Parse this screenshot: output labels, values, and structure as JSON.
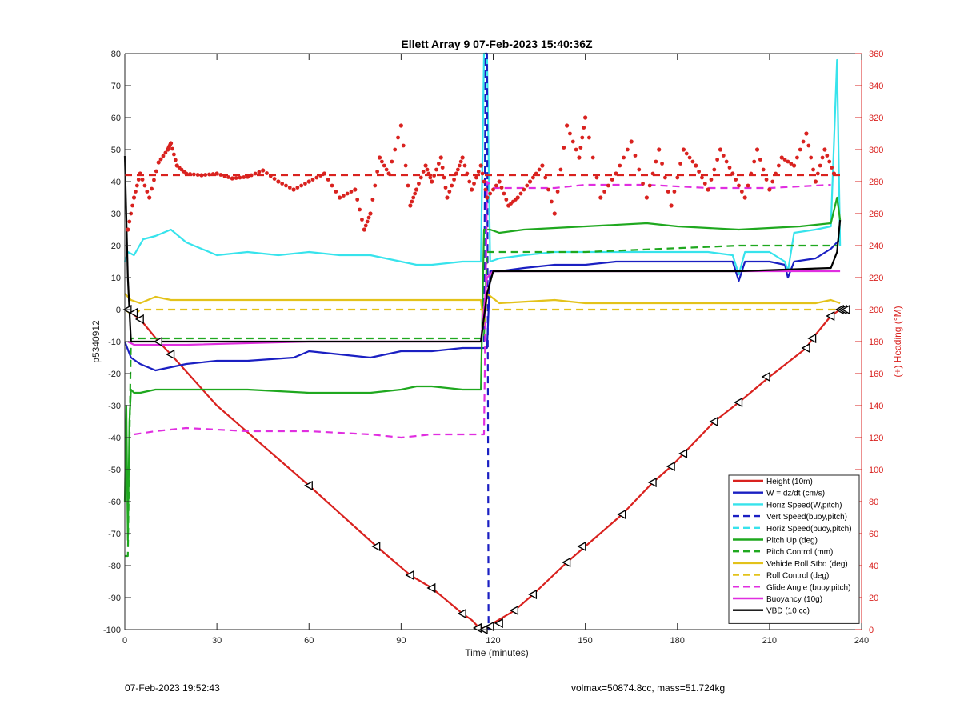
{
  "chart_data": {
    "type": "line",
    "title": "Ellett Array 9 07-Feb-2023 15:40:36Z",
    "xlabel": "Time (minutes)",
    "ylabel": "p5340912",
    "y2label": "(+) Heading (°M)",
    "xlim": [
      0,
      240
    ],
    "ylim": [
      -100,
      80
    ],
    "y2lim": [
      0,
      360
    ],
    "xticks": [
      0,
      30,
      60,
      90,
      120,
      150,
      180,
      210,
      240
    ],
    "yticks": [
      -100,
      -90,
      -80,
      -70,
      -60,
      -50,
      -40,
      -30,
      -20,
      -10,
      0,
      10,
      20,
      30,
      40,
      50,
      60,
      70,
      80
    ],
    "y2ticks": [
      0,
      20,
      40,
      60,
      80,
      100,
      120,
      140,
      160,
      180,
      200,
      220,
      240,
      260,
      280,
      300,
      320,
      340,
      360
    ],
    "legend_position": "bottom-right",
    "colors": {
      "red": "#d9221f",
      "blue": "#1a1fc2",
      "cyan": "#37e3ec",
      "green": "#1fa81f",
      "yellow": "#e3c21a",
      "magenta": "#e02ee0",
      "black": "#000000"
    },
    "series": [
      {
        "name": "Height (10m)",
        "color": "#d9221f",
        "style": "solid",
        "marker": "triangle",
        "x": [
          0,
          2,
          5,
          11,
          15,
          30,
          60,
          82,
          93,
          100,
          110,
          113,
          115,
          118,
          120,
          127,
          133,
          144,
          150,
          162,
          172,
          178,
          182,
          192,
          200,
          210,
          222,
          224,
          230,
          233,
          234
        ],
        "y": [
          0,
          -1,
          -3,
          -10,
          -14,
          -30,
          -55,
          -74,
          -83,
          -87,
          -95,
          -97,
          -99,
          -100,
          -98,
          -94,
          -89,
          -79,
          -74,
          -64,
          -54,
          -49,
          -45,
          -35,
          -29,
          -21,
          -12,
          -9,
          -2,
          0,
          0
        ]
      },
      {
        "name": "W = dz/dt (cm/s)",
        "color": "#1a1fc2",
        "style": "solid",
        "x": [
          0,
          2,
          5,
          10,
          15,
          20,
          30,
          40,
          55,
          60,
          70,
          80,
          90,
          100,
          110,
          116,
          118,
          119,
          122,
          130,
          140,
          150,
          160,
          170,
          180,
          190,
          198,
          200,
          202,
          210,
          215,
          216,
          218,
          225,
          230,
          233
        ],
        "y": [
          -10,
          -15,
          -17,
          -19,
          -18,
          -17,
          -16,
          -16,
          -15,
          -13,
          -14,
          -15,
          -13,
          -13,
          -12,
          -12,
          -12,
          12,
          12,
          13,
          14,
          14,
          15,
          15,
          15,
          15,
          15,
          9,
          15,
          15,
          14,
          10,
          15,
          16,
          19,
          22
        ]
      },
      {
        "name": "Horiz Speed(W,pitch)",
        "color": "#37e3ec",
        "style": "solid",
        "x": [
          0,
          1,
          3,
          6,
          10,
          15,
          20,
          30,
          40,
          50,
          60,
          70,
          80,
          90,
          95,
          100,
          110,
          116,
          117,
          118,
          119,
          122,
          130,
          140,
          150,
          160,
          170,
          180,
          190,
          198,
          200,
          202,
          210,
          215,
          216,
          218,
          225,
          230,
          232,
          233
        ],
        "y": [
          15,
          18,
          17,
          22,
          23,
          25,
          21,
          17,
          18,
          17,
          18,
          17,
          17,
          15,
          14,
          14,
          15,
          15,
          80,
          80,
          15,
          16,
          17,
          18,
          18,
          18,
          18,
          18,
          18,
          17,
          11,
          18,
          18,
          15,
          12,
          24,
          25,
          26,
          78,
          20
        ]
      },
      {
        "name": "Vert Speed(buoy,pitch)",
        "color": "#1a1fc2",
        "style": "dashed",
        "x": [
          117,
          117.5,
          118,
          118.5,
          119
        ],
        "y": [
          -10,
          80,
          80,
          -100,
          -100
        ]
      },
      {
        "name": "Horiz Speed(buoy,pitch)",
        "color": "#37e3ec",
        "style": "dashed",
        "x": [],
        "y": []
      },
      {
        "name": "Pitch Up (deg)",
        "color": "#1fa81f",
        "style": "solid",
        "x": [
          0,
          0.5,
          1,
          1.5,
          2,
          3,
          5,
          10,
          20,
          40,
          60,
          80,
          90,
          95,
          100,
          110,
          116,
          117,
          119,
          122,
          130,
          150,
          170,
          180,
          200,
          220,
          230,
          232,
          233
        ],
        "y": [
          -60,
          -30,
          -72,
          -35,
          -25,
          -26,
          -26,
          -25,
          -25,
          -25,
          -26,
          -26,
          -25,
          -24,
          -24,
          -25,
          -25,
          25,
          25,
          24,
          25,
          26,
          27,
          26,
          25,
          26,
          27,
          35,
          28
        ]
      },
      {
        "name": "Pitch Control (mm)",
        "color": "#1fa81f",
        "style": "dashed",
        "x": [
          0,
          1,
          2,
          5,
          117,
          118,
          120,
          150,
          200,
          232
        ],
        "y": [
          -77,
          -77,
          -9,
          -9,
          -9,
          18,
          18,
          18,
          20,
          20
        ]
      },
      {
        "name": "Vehicle Roll Stbd (deg)",
        "color": "#e3c21a",
        "style": "solid",
        "x": [
          0,
          2,
          5,
          10,
          15,
          30,
          60,
          80,
          93,
          100,
          116,
          117,
          118,
          122,
          140,
          150,
          170,
          190,
          210,
          225,
          230,
          233
        ],
        "y": [
          5,
          3,
          2,
          4,
          3,
          3,
          3,
          3,
          3,
          3,
          3,
          -5,
          5,
          2,
          3,
          2,
          2,
          2,
          2,
          2,
          3,
          2
        ]
      },
      {
        "name": "Roll Control (deg)",
        "color": "#e3c21a",
        "style": "dashed",
        "x": [
          0,
          3,
          5,
          15,
          30,
          60,
          90,
          115,
          118,
          125,
          150,
          180,
          210,
          232
        ],
        "y": [
          0,
          -2,
          0,
          0,
          0,
          0,
          0,
          0,
          0,
          0,
          0,
          0,
          0,
          0
        ]
      },
      {
        "name": "Glide Angle (buoy,pitch)",
        "color": "#e02ee0",
        "style": "dashed",
        "x": [
          3,
          10,
          20,
          40,
          60,
          80,
          90,
          100,
          110,
          116,
          117,
          118,
          120,
          140,
          150,
          170,
          190,
          210,
          230
        ],
        "y": [
          -39,
          -38,
          -37,
          -38,
          -38,
          -39,
          -40,
          -39,
          -39,
          -39,
          -39,
          40,
          38,
          38,
          39,
          39,
          38,
          38,
          39
        ]
      },
      {
        "name": "Buoyancy (10g)",
        "color": "#e02ee0",
        "style": "solid",
        "x": [
          1,
          3,
          20,
          60,
          100,
          116,
          118,
          120,
          150,
          200,
          230,
          233
        ],
        "y": [
          -10,
          -11,
          -11,
          -10,
          -10,
          -10,
          10,
          12,
          12,
          12,
          12,
          12
        ]
      },
      {
        "name": "VBD (10 cc)",
        "color": "#000000",
        "style": "solid",
        "x": [
          0,
          1,
          2,
          3,
          60,
          116,
          118,
          120,
          150,
          200,
          230,
          232,
          233
        ],
        "y": [
          48,
          10,
          -10,
          -10,
          -10,
          -10,
          5,
          12,
          12,
          12,
          13,
          18,
          28
        ]
      },
      {
        "name": "Heading",
        "axis": "right",
        "color": "#d9221f",
        "style": "dots",
        "legend": false,
        "x": [
          1,
          3,
          5,
          8,
          11,
          14,
          15,
          17,
          20,
          25,
          30,
          35,
          40,
          45,
          50,
          55,
          60,
          65,
          70,
          75,
          78,
          80,
          83,
          86,
          90,
          93,
          95,
          98,
          100,
          103,
          105,
          108,
          110,
          113,
          116,
          118,
          122,
          125,
          128,
          132,
          136,
          140,
          144,
          148,
          150,
          155,
          160,
          165,
          170,
          174,
          178,
          182,
          186,
          190,
          194,
          198,
          202,
          206,
          210,
          214,
          218,
          222,
          225,
          228,
          231
        ],
        "y": [
          250,
          270,
          285,
          270,
          292,
          300,
          304,
          290,
          285,
          284,
          285,
          282,
          283,
          287,
          280,
          275,
          280,
          285,
          270,
          275,
          250,
          260,
          295,
          285,
          315,
          265,
          275,
          290,
          280,
          295,
          270,
          285,
          295,
          275,
          290,
          270,
          280,
          265,
          270,
          280,
          290,
          260,
          315,
          295,
          320,
          270,
          285,
          305,
          270,
          300,
          265,
          300,
          290,
          275,
          300,
          285,
          270,
          300,
          275,
          295,
          290,
          310,
          280,
          300,
          285
        ]
      },
      {
        "name": "Heading target",
        "axis": "right",
        "color": "#d9221f",
        "style": "dashed",
        "legend": false,
        "x": [
          0,
          234
        ],
        "y": [
          284,
          284
        ]
      }
    ],
    "markers": {
      "name": "Height (10m)",
      "symbol": "triangle-black",
      "x": [
        1,
        3,
        5,
        11,
        15,
        60,
        82,
        93,
        100,
        110,
        115,
        117,
        119,
        122,
        127,
        133,
        144,
        149,
        162,
        172,
        178,
        182,
        192,
        200,
        209,
        222,
        224,
        230,
        233,
        234,
        235
      ],
      "y": [
        0,
        -1,
        -3,
        -10,
        -14,
        -55,
        -74,
        -83,
        -87,
        -95,
        -99.5,
        -100,
        -99,
        -98,
        -94,
        -89,
        -79,
        -74,
        -64,
        -54,
        -49,
        -45,
        -35,
        -29,
        -21,
        -12,
        -9,
        -2,
        0,
        0,
        0
      ]
    }
  },
  "footer": {
    "timestamp": "07-Feb-2023 19:52:43",
    "info": "volmax=50874.8cc, mass=51.724kg"
  }
}
